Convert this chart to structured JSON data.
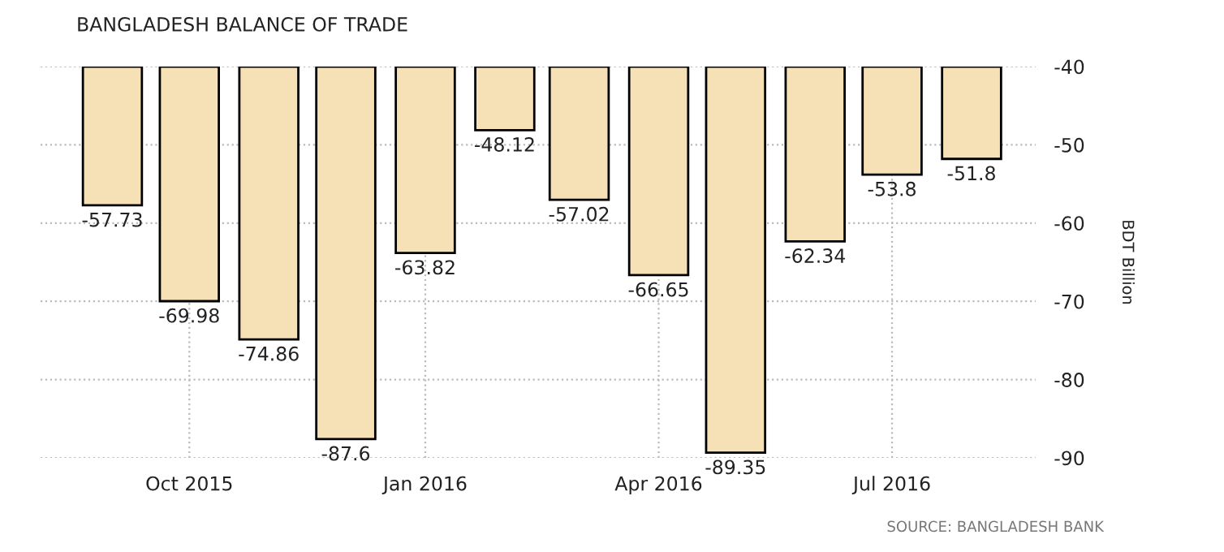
{
  "chart_data": {
    "type": "bar",
    "title": "BANGLADESH BALANCE OF TRADE",
    "ylabel": "BDT Billion",
    "x": [
      "2015-09",
      "2015-10",
      "2015-11",
      "2015-12",
      "2016-01",
      "2016-02",
      "2016-03",
      "2016-04",
      "2016-05",
      "2016-06",
      "2016-07",
      "2016-08"
    ],
    "values": [
      -57.73,
      -69.98,
      -74.86,
      -87.6,
      -63.82,
      -48.12,
      -57.02,
      -66.65,
      -89.35,
      -62.34,
      -53.8,
      -51.8
    ],
    "color": "#f6e0b6",
    "data_labels": true,
    "xlim": [
      "2015-08-04",
      "2016-08-26"
    ],
    "xticks": [
      {
        "value": "2015-10",
        "label": "Oct 2015"
      },
      {
        "value": "2016-01",
        "label": "Jan 2016"
      },
      {
        "value": "2016-04",
        "label": "Apr 2016"
      },
      {
        "value": "2016-07",
        "label": "Jul 2016"
      }
    ],
    "ylim": [
      -90,
      -40
    ],
    "yticks": [
      -90,
      -80,
      -70,
      -60,
      -50,
      -40
    ],
    "grid": true,
    "annotations": [
      "SOURCE: BANGLADESH BANK"
    ]
  }
}
